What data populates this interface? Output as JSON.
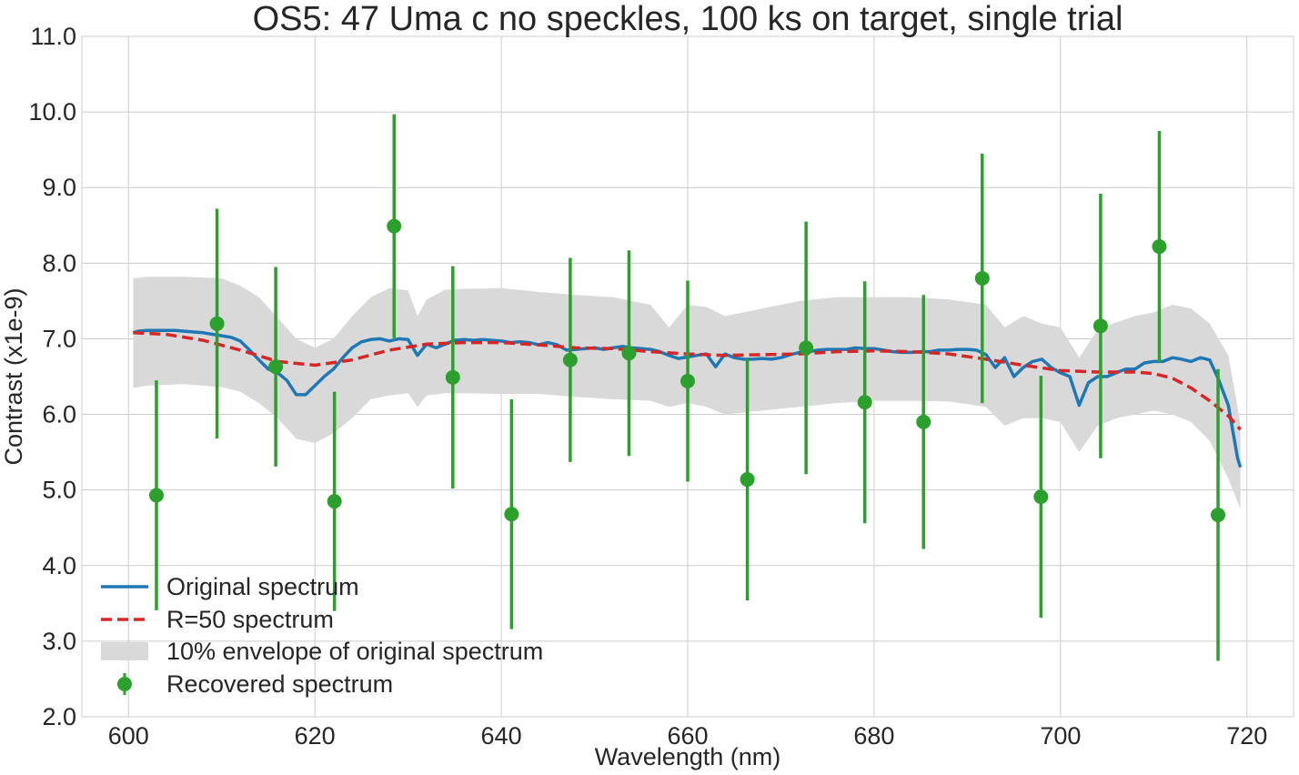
{
  "chart_data": {
    "type": "line",
    "title": "OS5: 47 Uma c no speckles, 100 ks on target, single trial",
    "xlabel": "Wavelength (nm)",
    "ylabel": "Contrast (x1e-9)",
    "xlim": [
      595,
      725
    ],
    "ylim": [
      2.0,
      11.0
    ],
    "xticks": [
      600,
      620,
      640,
      660,
      680,
      700,
      720
    ],
    "yticks": [
      2.0,
      3.0,
      4.0,
      5.0,
      6.0,
      7.0,
      8.0,
      9.0,
      10.0,
      11.0
    ],
    "grid": true,
    "legend_position": "lower-left",
    "colors": {
      "original": "#1f77b4",
      "r50": "#d62728",
      "envelope": "#d9d9d9",
      "recovered": "#2ca02c",
      "grid": "#cccccc",
      "text": "#262626"
    },
    "series": [
      {
        "name": "Original spectrum",
        "style": "solid",
        "x": [
          600.5,
          601,
          602,
          603,
          604,
          605,
          606,
          607,
          608,
          609,
          610,
          611,
          612,
          613,
          614,
          615,
          616,
          617,
          618,
          619,
          620,
          621,
          622,
          623,
          624,
          625,
          626,
          627,
          628,
          629,
          630,
          631,
          632,
          633,
          634,
          635,
          636,
          637,
          638,
          639,
          640,
          641,
          642,
          643,
          644,
          645,
          646,
          647,
          648,
          649,
          650,
          651,
          652,
          653,
          654,
          655,
          656,
          657,
          658,
          659,
          660,
          661,
          662,
          663,
          664,
          665,
          666,
          667,
          668,
          669,
          670,
          671,
          672,
          673,
          674,
          675,
          676,
          677,
          678,
          679,
          680,
          681,
          682,
          683,
          684,
          685,
          686,
          687,
          688,
          689,
          690,
          691,
          692,
          693,
          694,
          695,
          696,
          697,
          698,
          699,
          700,
          701,
          702,
          703,
          704,
          705,
          706,
          707,
          708,
          709,
          710,
          711,
          712,
          713,
          714,
          715,
          716,
          717,
          718,
          719,
          719.3
        ],
        "y": [
          7.08,
          7.1,
          7.11,
          7.11,
          7.11,
          7.11,
          7.1,
          7.09,
          7.08,
          7.06,
          7.04,
          7.02,
          6.97,
          6.85,
          6.72,
          6.6,
          6.55,
          6.45,
          6.26,
          6.26,
          6.38,
          6.5,
          6.6,
          6.75,
          6.88,
          6.96,
          6.99,
          7.0,
          6.97,
          7.0,
          6.99,
          6.78,
          6.93,
          6.88,
          6.93,
          6.98,
          6.99,
          6.98,
          6.99,
          6.98,
          6.97,
          6.95,
          6.96,
          6.95,
          6.92,
          6.95,
          6.92,
          6.85,
          6.86,
          6.87,
          6.88,
          6.86,
          6.88,
          6.9,
          6.88,
          6.87,
          6.86,
          6.83,
          6.78,
          6.74,
          6.76,
          6.78,
          6.8,
          6.63,
          6.8,
          6.75,
          6.73,
          6.73,
          6.74,
          6.73,
          6.75,
          6.79,
          6.82,
          6.83,
          6.85,
          6.86,
          6.86,
          6.86,
          6.88,
          6.87,
          6.87,
          6.85,
          6.83,
          6.82,
          6.82,
          6.83,
          6.83,
          6.85,
          6.85,
          6.86,
          6.86,
          6.85,
          6.79,
          6.62,
          6.75,
          6.5,
          6.62,
          6.7,
          6.73,
          6.62,
          6.55,
          6.5,
          6.12,
          6.42,
          6.5,
          6.5,
          6.55,
          6.6,
          6.6,
          6.68,
          6.7,
          6.7,
          6.75,
          6.73,
          6.7,
          6.75,
          6.72,
          6.45,
          6.12,
          5.42,
          5.3
        ]
      },
      {
        "name": "R=50 spectrum",
        "style": "dashed",
        "x": [
          600.5,
          604,
          608,
          612,
          616,
          620,
          624,
          628,
          632,
          636,
          640,
          644,
          648,
          652,
          656,
          660,
          664,
          668,
          672,
          676,
          680,
          684,
          688,
          692,
          696,
          700,
          704,
          708,
          710,
          712,
          714,
          716,
          718,
          719.3
        ],
        "y": [
          7.08,
          7.06,
          6.98,
          6.85,
          6.7,
          6.65,
          6.72,
          6.85,
          6.93,
          6.95,
          6.95,
          6.92,
          6.88,
          6.87,
          6.83,
          6.8,
          6.78,
          6.79,
          6.8,
          6.83,
          6.84,
          6.83,
          6.8,
          6.73,
          6.65,
          6.58,
          6.56,
          6.56,
          6.54,
          6.48,
          6.35,
          6.18,
          5.98,
          5.8
        ]
      }
    ],
    "envelope": {
      "name": "10% envelope of original spectrum",
      "x": [
        600.5,
        602,
        606,
        610,
        612,
        614,
        616,
        618,
        620,
        622,
        624,
        626,
        628,
        630,
        631,
        632,
        634,
        636,
        640,
        644,
        648,
        652,
        656,
        658,
        660,
        662,
        664,
        668,
        672,
        676,
        680,
        684,
        688,
        692,
        694,
        696,
        698,
        700,
        702,
        704,
        706,
        708,
        710,
        712,
        714,
        716,
        718,
        719.3
      ],
      "upper": [
        7.8,
        7.82,
        7.82,
        7.8,
        7.7,
        7.55,
        7.28,
        7.0,
        6.88,
        7.0,
        7.3,
        7.55,
        7.67,
        7.64,
        7.3,
        7.52,
        7.65,
        7.66,
        7.67,
        7.62,
        7.58,
        7.55,
        7.45,
        7.15,
        7.45,
        7.42,
        7.3,
        7.4,
        7.5,
        7.55,
        7.55,
        7.55,
        7.52,
        7.45,
        7.15,
        7.3,
        7.2,
        7.15,
        6.75,
        7.12,
        7.22,
        7.3,
        7.35,
        7.45,
        7.4,
        7.2,
        6.78,
        5.88
      ],
      "lower": [
        6.35,
        6.38,
        6.4,
        6.36,
        6.3,
        6.15,
        5.95,
        5.68,
        5.62,
        5.75,
        5.95,
        6.2,
        6.25,
        6.28,
        6.1,
        6.25,
        6.28,
        6.28,
        6.27,
        6.27,
        6.23,
        6.2,
        6.18,
        6.1,
        6.15,
        6.1,
        6.0,
        6.05,
        6.1,
        6.15,
        6.18,
        6.18,
        6.17,
        6.1,
        5.85,
        5.95,
        5.95,
        5.9,
        5.5,
        5.85,
        5.95,
        6.0,
        6.05,
        6.0,
        5.9,
        5.65,
        5.15,
        4.75
      ]
    },
    "recovered": {
      "name": "Recovered spectrum",
      "x": [
        603,
        609.5,
        615.8,
        622.1,
        628.5,
        634.8,
        641.1,
        647.4,
        653.7,
        660,
        666.4,
        672.7,
        679,
        685.3,
        691.6,
        697.9,
        704.3,
        710.6,
        716.9
      ],
      "y": [
        4.93,
        7.2,
        6.63,
        4.85,
        8.49,
        6.49,
        4.68,
        6.72,
        6.81,
        6.44,
        5.14,
        6.88,
        6.16,
        5.9,
        7.8,
        4.91,
        7.17,
        8.22,
        4.67
      ],
      "yerr": [
        1.52,
        1.52,
        1.32,
        1.45,
        1.48,
        1.47,
        1.52,
        1.35,
        1.36,
        1.33,
        1.6,
        1.67,
        1.6,
        1.68,
        1.65,
        1.6,
        1.75,
        1.53,
        1.93
      ]
    }
  }
}
